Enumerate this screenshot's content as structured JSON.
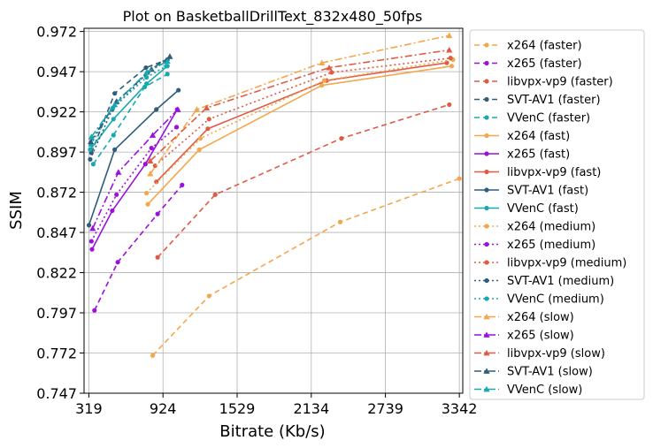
{
  "colors": {
    "x264": "#F5A64A",
    "x265": "#9B10DC",
    "libvpx-vp9": "#E15A44",
    "SVT-AV1": "#2E5D7D",
    "VVenC": "#17A9AF",
    "grid": "#b0b0b0"
  },
  "chart_data": {
    "type": "line",
    "title": "Plot on BasketballDrillText_832x480_50fps",
    "xlabel": "Bitrate (Kb/s)",
    "ylabel": "SSIM",
    "xlim": [
      280,
      3370
    ],
    "ylim": [
      0.747,
      0.974
    ],
    "xticks": [
      319,
      924,
      1529,
      2134,
      2739,
      3342
    ],
    "xtick_labels": [
      "319",
      "924",
      "1529",
      "2134",
      "2739",
      "3342"
    ],
    "yticks": [
      0.747,
      0.772,
      0.797,
      0.822,
      0.847,
      0.872,
      0.897,
      0.922,
      0.947,
      0.972
    ],
    "ytick_labels": [
      "0.747",
      "0.772",
      "0.797",
      "0.822",
      "0.847",
      "0.872",
      "0.897",
      "0.922",
      "0.947",
      "0.972"
    ],
    "grid": true,
    "legend_position": "outside-right",
    "series": [
      {
        "name": "x264 (faster)",
        "codec": "x264",
        "preset": "faster",
        "x": [
          840,
          1300,
          2370,
          3342
        ],
        "y": [
          0.7705,
          0.8075,
          0.8535,
          0.8805
        ]
      },
      {
        "name": "x265 (faster)",
        "codec": "x265",
        "preset": "faster",
        "x": [
          365,
          555,
          880,
          1080
        ],
        "y": [
          0.7985,
          0.8285,
          0.8585,
          0.8765
        ]
      },
      {
        "name": "libvpx-vp9 (faster)",
        "codec": "libvpx-vp9",
        "preset": "faster",
        "x": [
          880,
          1350,
          2380,
          3260
        ],
        "y": [
          0.8315,
          0.8705,
          0.9055,
          0.9265
        ]
      },
      {
        "name": "SVT-AV1 (faster)",
        "codec": "SVT-AV1",
        "preset": "faster",
        "x": [
          340,
          530,
          785,
          960
        ],
        "y": [
          0.8965,
          0.9335,
          0.9495,
          0.9545
        ]
      },
      {
        "name": "VVenC (faster)",
        "codec": "VVenC",
        "preset": "faster",
        "x": [
          355,
          520,
          775,
          960
        ],
        "y": [
          0.8895,
          0.9075,
          0.9375,
          0.9455
        ]
      },
      {
        "name": "x264 (fast)",
        "codec": "x264",
        "preset": "fast",
        "x": [
          800,
          1220,
          2220,
          3280
        ],
        "y": [
          0.8645,
          0.8985,
          0.9385,
          0.9505
        ]
      },
      {
        "name": "x265 (fast)",
        "codec": "x265",
        "preset": "fast",
        "x": [
          345,
          510,
          780,
          1040
        ],
        "y": [
          0.8365,
          0.8605,
          0.8895,
          0.9235
        ]
      },
      {
        "name": "libvpx-vp9 (fast)",
        "codec": "libvpx-vp9",
        "preset": "fast",
        "x": [
          870,
          1290,
          2260,
          3240
        ],
        "y": [
          0.8785,
          0.9115,
          0.9415,
          0.9525
        ]
      },
      {
        "name": "SVT-AV1 (fast)",
        "codec": "SVT-AV1",
        "preset": "fast",
        "x": [
          320,
          530,
          870,
          1050
        ],
        "y": [
          0.8515,
          0.8985,
          0.9235,
          0.9355
        ]
      },
      {
        "name": "VVenC (fast)",
        "codec": "VVenC",
        "preset": "fast",
        "x": [
          330,
          520,
          790,
          960
        ],
        "y": [
          0.8985,
          0.9175,
          0.9395,
          0.9505
        ]
      },
      {
        "name": "x264 (medium)",
        "codec": "x264",
        "preset": "medium",
        "x": [
          790,
          1230,
          2240,
          3290
        ],
        "y": [
          0.8715,
          0.9055,
          0.9415,
          0.9545
        ]
      },
      {
        "name": "x265 (medium)",
        "codec": "x265",
        "preset": "medium",
        "x": [
          340,
          545,
          830,
          1035
        ],
        "y": [
          0.8415,
          0.8705,
          0.8995,
          0.9125
        ]
      },
      {
        "name": "libvpx-vp9 (medium)",
        "codec": "libvpx-vp9",
        "preset": "medium",
        "x": [
          860,
          1300,
          2300,
          3270
        ],
        "y": [
          0.8885,
          0.9175,
          0.9465,
          0.9555
        ]
      },
      {
        "name": "SVT-AV1 (medium)",
        "codec": "SVT-AV1",
        "preset": "medium",
        "x": [
          330,
          510,
          800,
          950
        ],
        "y": [
          0.8925,
          0.9235,
          0.9465,
          0.9535
        ]
      },
      {
        "name": "VVenC (medium)",
        "codec": "VVenC",
        "preset": "medium",
        "x": [
          335,
          515,
          790,
          950
        ],
        "y": [
          0.9015,
          0.9245,
          0.9435,
          0.9505
        ]
      },
      {
        "name": "x264 (slow)",
        "codec": "x264",
        "preset": "slow",
        "x": [
          820,
          1200,
          2220,
          3260
        ],
        "y": [
          0.8835,
          0.9235,
          0.9525,
          0.9695
        ]
      },
      {
        "name": "x265 (slow)",
        "codec": "x265",
        "preset": "slow",
        "x": [
          350,
          560,
          840,
          1045
        ],
        "y": [
          0.8495,
          0.8845,
          0.9075,
          0.9235
        ]
      },
      {
        "name": "libvpx-vp9 (slow)",
        "codec": "libvpx-vp9",
        "preset": "slow",
        "x": [
          820,
          1280,
          2280,
          3260
        ],
        "y": [
          0.8915,
          0.9245,
          0.9495,
          0.9605
        ]
      },
      {
        "name": "SVT-AV1 (slow)",
        "codec": "SVT-AV1",
        "preset": "slow",
        "x": [
          335,
          545,
          830,
          980
        ],
        "y": [
          0.9035,
          0.9285,
          0.9485,
          0.9565
        ]
      },
      {
        "name": "VVenC (slow)",
        "codec": "VVenC",
        "preset": "slow",
        "x": [
          340,
          530,
          790,
          960
        ],
        "y": [
          0.9065,
          0.9265,
          0.9465,
          0.9535
        ]
      }
    ]
  }
}
